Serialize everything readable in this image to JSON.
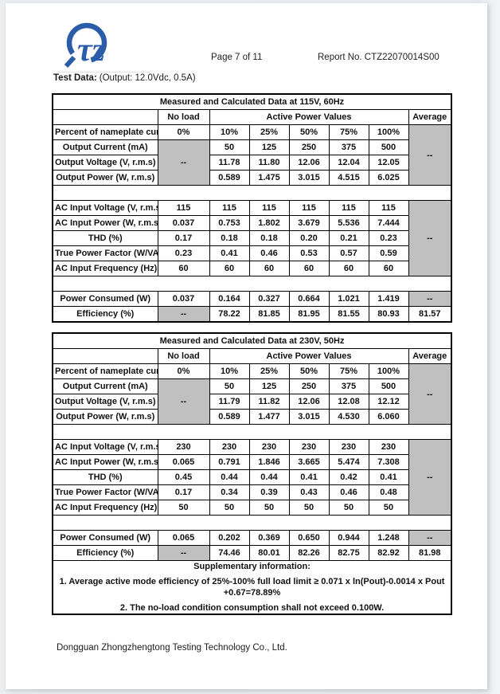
{
  "header": {
    "page_label": "Page 7 of 11",
    "report_no": "Report No. CTZ22070014S00",
    "logo": {
      "icon": "ctz-logo",
      "glyph": "τz",
      "color": "#2a5ca8"
    }
  },
  "test_data": {
    "label": "Test Data:",
    "value": "(Output: 12.0Vdc, 0.5A)"
  },
  "footer": {
    "company": "Dongguan Zhongzhengtong Testing Technology Co., Ltd."
  },
  "colors": {
    "na_cell": "#c0c0c0",
    "logo_blue": "#2a5ca8",
    "border": "#000000"
  },
  "tables": [
    {
      "title": "Measured and Calculated Data at 115V, 60Hz",
      "columns": [
        132,
        65,
        50,
        50,
        50,
        50,
        50,
        54
      ],
      "rows": [
        {
          "cells": [
            {
              "t": "",
              "cls": "lbl"
            },
            {
              "t": "No load",
              "cls": "hdr"
            },
            {
              "t": "Active Power Values",
              "cls": "hdr",
              "cs": 5
            },
            {
              "t": "Average",
              "cls": "hdr"
            }
          ]
        },
        {
          "cells": [
            {
              "t": "Percent of nameplate current",
              "cls": "lbl"
            },
            "0%",
            "10%",
            "25%",
            "50%",
            "75%",
            "100%",
            {
              "t": "--",
              "cls": "gray",
              "rs": 4
            }
          ]
        },
        {
          "cells": [
            {
              "t": "Output Current (mA)",
              "cls": "lbl"
            },
            {
              "t": "--",
              "cls": "gray",
              "rs": 3
            },
            "50",
            "125",
            "250",
            "375",
            "500"
          ]
        },
        {
          "cells": [
            {
              "t": "Output Voltage (V, r.m.s)",
              "cls": "lbl"
            },
            "11.78",
            "11.80",
            "12.06",
            "12.04",
            "12.05"
          ]
        },
        {
          "cells": [
            {
              "t": "Output Power (W, r.m.s)",
              "cls": "lbl"
            },
            "0.589",
            "1.475",
            "3.015",
            "4.515",
            "6.025"
          ]
        },
        {
          "cells": [
            {
              "t": "",
              "cls": "spacer",
              "cs": 8
            }
          ]
        },
        {
          "cells": [
            {
              "t": "AC Input Voltage (V, r.m.s)",
              "cls": "lbl"
            },
            "115",
            "115",
            "115",
            "115",
            "115",
            "115",
            {
              "t": "--",
              "cls": "gray",
              "rs": 5
            }
          ]
        },
        {
          "cells": [
            {
              "t": "AC Input Power (W, r.m.s)",
              "cls": "lbl"
            },
            "0.037",
            "0.753",
            "1.802",
            "3.679",
            "5.536",
            "7.444"
          ]
        },
        {
          "cells": [
            {
              "t": "THD (%)",
              "cls": "lbl"
            },
            "0.17",
            "0.18",
            "0.18",
            "0.20",
            "0.21",
            "0.23"
          ]
        },
        {
          "cells": [
            {
              "t": "True Power Factor (W/VA)",
              "cls": "lbl"
            },
            "0.23",
            "0.41",
            "0.46",
            "0.53",
            "0.57",
            "0.59"
          ]
        },
        {
          "cells": [
            {
              "t": "AC Input Frequency (Hz)",
              "cls": "lbl"
            },
            "60",
            "60",
            "60",
            "60",
            "60",
            "60"
          ]
        },
        {
          "cells": [
            {
              "t": "",
              "cls": "spacer",
              "cs": 8
            }
          ]
        },
        {
          "cells": [
            {
              "t": "Power Consumed (W)",
              "cls": "lbl"
            },
            "0.037",
            "0.164",
            "0.327",
            "0.664",
            "1.021",
            "1.419",
            {
              "t": "--",
              "cls": "gray"
            }
          ]
        },
        {
          "cells": [
            {
              "t": "Efficiency (%)",
              "cls": "lbl"
            },
            {
              "t": "--",
              "cls": "gray"
            },
            "78.22",
            "81.85",
            "81.95",
            "81.55",
            "80.93",
            "81.57"
          ]
        }
      ]
    },
    {
      "title": "Measured and Calculated Data at 230V, 50Hz",
      "columns": [
        132,
        65,
        50,
        50,
        50,
        50,
        50,
        54
      ],
      "rows": [
        {
          "cells": [
            {
              "t": "",
              "cls": "lbl"
            },
            {
              "t": "No load",
              "cls": "hdr"
            },
            {
              "t": "Active Power Values",
              "cls": "hdr",
              "cs": 5
            },
            {
              "t": "Average",
              "cls": "hdr"
            }
          ]
        },
        {
          "cells": [
            {
              "t": "Percent of nameplate current",
              "cls": "lbl"
            },
            "0%",
            "10%",
            "25%",
            "50%",
            "75%",
            "100%",
            {
              "t": "--",
              "cls": "gray",
              "rs": 4
            }
          ]
        },
        {
          "cells": [
            {
              "t": "Output Current (mA)",
              "cls": "lbl"
            },
            {
              "t": "--",
              "cls": "gray",
              "rs": 3
            },
            "50",
            "125",
            "250",
            "375",
            "500"
          ]
        },
        {
          "cells": [
            {
              "t": "Output Voltage (V, r.m.s)",
              "cls": "lbl"
            },
            "11.79",
            "11.82",
            "12.06",
            "12.08",
            "12.12"
          ]
        },
        {
          "cells": [
            {
              "t": "Output Power (W, r.m.s)",
              "cls": "lbl"
            },
            "0.589",
            "1.477",
            "3.015",
            "4.530",
            "6.060"
          ]
        },
        {
          "cells": [
            {
              "t": "",
              "cls": "spacer",
              "cs": 8
            }
          ]
        },
        {
          "cells": [
            {
              "t": "AC Input Voltage (V, r.m.s)",
              "cls": "lbl"
            },
            "230",
            "230",
            "230",
            "230",
            "230",
            "230",
            {
              "t": "--",
              "cls": "gray",
              "rs": 5
            }
          ]
        },
        {
          "cells": [
            {
              "t": "AC Input Power (W, r.m.s)",
              "cls": "lbl"
            },
            "0.065",
            "0.791",
            "1.846",
            "3.665",
            "5.474",
            "7.308"
          ]
        },
        {
          "cells": [
            {
              "t": "THD (%)",
              "cls": "lbl"
            },
            "0.45",
            "0.44",
            "0.44",
            "0.41",
            "0.42",
            "0.41"
          ]
        },
        {
          "cells": [
            {
              "t": "True Power Factor (W/VA)",
              "cls": "lbl"
            },
            "0.17",
            "0.34",
            "0.39",
            "0.43",
            "0.46",
            "0.48"
          ]
        },
        {
          "cells": [
            {
              "t": "AC Input Frequency (Hz)",
              "cls": "lbl"
            },
            "50",
            "50",
            "50",
            "50",
            "50",
            "50"
          ]
        },
        {
          "cells": [
            {
              "t": "",
              "cls": "spacer",
              "cs": 8
            }
          ]
        },
        {
          "cells": [
            {
              "t": "Power Consumed (W)",
              "cls": "lbl"
            },
            "0.065",
            "0.202",
            "0.369",
            "0.650",
            "0.944",
            "1.248",
            {
              "t": "--",
              "cls": "gray"
            }
          ]
        },
        {
          "cells": [
            {
              "t": "Efficiency (%)",
              "cls": "lbl"
            },
            {
              "t": "--",
              "cls": "gray"
            },
            "74.46",
            "80.01",
            "82.26",
            "82.75",
            "82.92",
            "81.98"
          ]
        },
        {
          "cells": [
            {
              "cls": "sup",
              "cs": 8,
              "lines": [
                "Supplementary information:",
                "1. Average active mode efficiency of 25%-100% full load limit ≥ 0.071 x ln(Pout)-0.0014 x Pout\n+0.67=78.89%",
                "2. The no-load condition consumption shall not exceed 0.100W."
              ]
            }
          ]
        }
      ]
    }
  ]
}
